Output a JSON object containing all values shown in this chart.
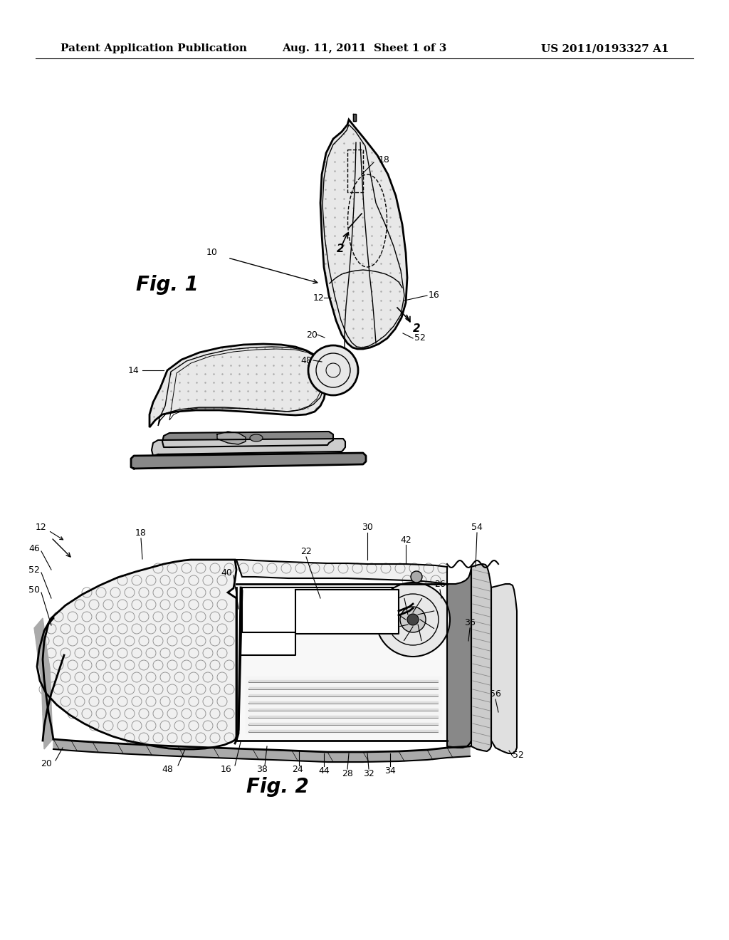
{
  "header_left": "Patent Application Publication",
  "header_center": "Aug. 11, 2011  Sheet 1 of 3",
  "header_right": "US 2011/0193327 A1",
  "fig1_label": "Fig. 1",
  "fig2_label": "Fig. 2",
  "bg_color": "#ffffff",
  "line_color": "#000000",
  "header_fontsize": 11,
  "fig_label_fontsize": 20,
  "ref_fontsize": 9
}
